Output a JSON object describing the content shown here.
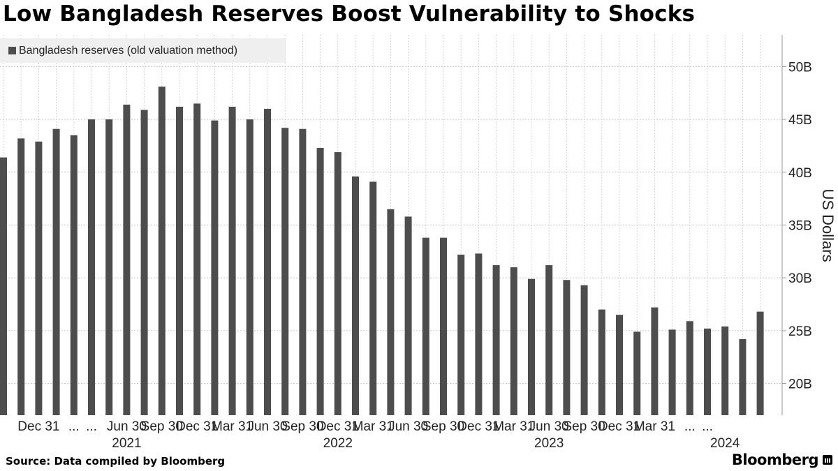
{
  "chart_data": {
    "type": "bar",
    "title": "Low Bangladesh Reserves Boost Vulnerability to Shocks",
    "ylabel": "US Dollars",
    "xlabel": "",
    "ylim": [
      17,
      53
    ],
    "yticks": [
      20,
      25,
      30,
      35,
      40,
      45,
      50
    ],
    "ytick_labels": [
      "20B",
      "25B",
      "30B",
      "35B",
      "40B",
      "45B",
      "50B"
    ],
    "grid": true,
    "legend_position": "top-left",
    "color": "#4d4d4d",
    "series": [
      {
        "name": "Bangladesh reserves (old valuation method)",
        "values": [
          41.4,
          43.2,
          42.9,
          44.1,
          43.5,
          45.0,
          45.0,
          46.4,
          45.9,
          48.1,
          46.2,
          46.5,
          44.9,
          46.2,
          45.0,
          46.0,
          44.2,
          44.1,
          42.3,
          41.9,
          39.6,
          39.1,
          36.5,
          35.8,
          33.8,
          33.8,
          32.2,
          32.3,
          31.2,
          31.0,
          29.9,
          31.2,
          29.8,
          29.3,
          27.0,
          26.5,
          24.9,
          27.2,
          25.1,
          25.9,
          25.2,
          25.4,
          24.2,
          26.8
        ]
      }
    ],
    "x_tick_labels": [
      {
        "label": "Dec 31",
        "bar_index": 2
      },
      {
        "label": "...",
        "bar_index": 4
      },
      {
        "label": "...",
        "bar_index": 5
      },
      {
        "label": "Jun 30",
        "bar_index": 7
      },
      {
        "label": "Sep 30",
        "bar_index": 9
      },
      {
        "label": "Dec 31",
        "bar_index": 11
      },
      {
        "label": "Mar 31",
        "bar_index": 13
      },
      {
        "label": "Jun 30",
        "bar_index": 15
      },
      {
        "label": "Sep 30",
        "bar_index": 17
      },
      {
        "label": "Dec 31",
        "bar_index": 19
      },
      {
        "label": "Mar 31",
        "bar_index": 21
      },
      {
        "label": "Jun 30",
        "bar_index": 23
      },
      {
        "label": "Sep 30",
        "bar_index": 25
      },
      {
        "label": "Dec 31",
        "bar_index": 27
      },
      {
        "label": "Mar 31",
        "bar_index": 29
      },
      {
        "label": "Jun 30",
        "bar_index": 31
      },
      {
        "label": "Sep 30",
        "bar_index": 33
      },
      {
        "label": "Dec 31",
        "bar_index": 35
      },
      {
        "label": "Mar 31",
        "bar_index": 37
      },
      {
        "label": "...",
        "bar_index": 39
      },
      {
        "label": "...",
        "bar_index": 40
      }
    ],
    "x_year_labels": [
      {
        "label": "2021",
        "bar_index": 7
      },
      {
        "label": "2022",
        "bar_index": 19
      },
      {
        "label": "2023",
        "bar_index": 31
      },
      {
        "label": "2024",
        "bar_index": 41
      }
    ]
  },
  "footer": {
    "source": "Source: Data compiled by Bloomberg",
    "brand": "Bloomberg"
  }
}
